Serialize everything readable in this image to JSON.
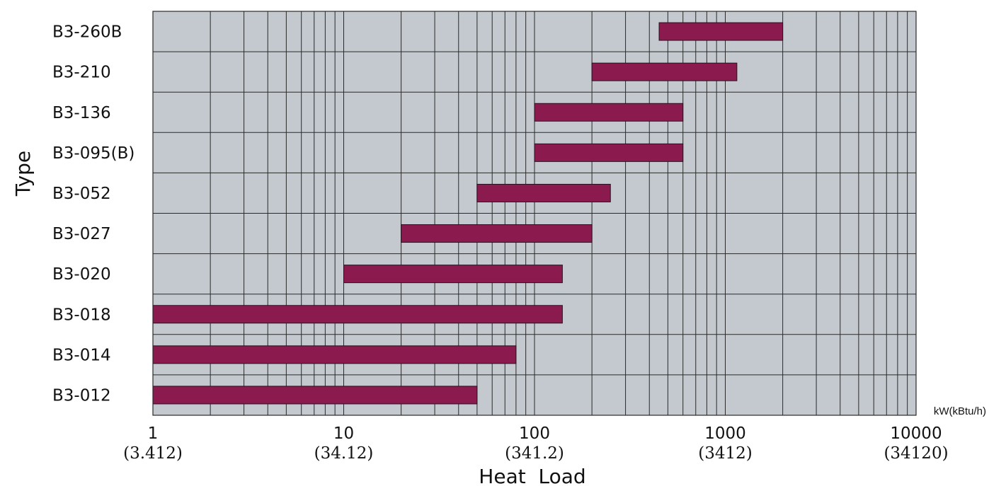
{
  "chart_data": {
    "type": "bar",
    "orientation": "horizontal",
    "bar_style": "range",
    "ylabel": "Type",
    "xlabel": "Heat  Load",
    "x_unit": "kW(kBtu/h)",
    "x_scale": "log",
    "xlim": [
      1,
      10000
    ],
    "x_ticks": [
      {
        "value": 1,
        "label": "1",
        "sub": "(3.412)"
      },
      {
        "value": 10,
        "label": "10",
        "sub": "(34.12)"
      },
      {
        "value": 100,
        "label": "100",
        "sub": "(341.2)"
      },
      {
        "value": 1000,
        "label": "1000",
        "sub": "(3412)"
      },
      {
        "value": 10000,
        "label": "10000",
        "sub": "(34120)"
      }
    ],
    "grid": true,
    "categories": [
      "B3-260B",
      "B3-210",
      "B3-136",
      "B3-095(B)",
      "B3-052",
      "B3-027",
      "B3-020",
      "B3-018",
      "B3-014",
      "B3-012"
    ],
    "ranges": [
      [
        450,
        2000
      ],
      [
        200,
        1150
      ],
      [
        100,
        600
      ],
      [
        100,
        600
      ],
      [
        50,
        250
      ],
      [
        20,
        200
      ],
      [
        10,
        140
      ],
      [
        1,
        140
      ],
      [
        1,
        80
      ],
      [
        1,
        50
      ]
    ],
    "colors": {
      "bar": "#8b1a4e",
      "plot_bg": "#c3c9ce",
      "grid": "#2a2a2a"
    }
  }
}
